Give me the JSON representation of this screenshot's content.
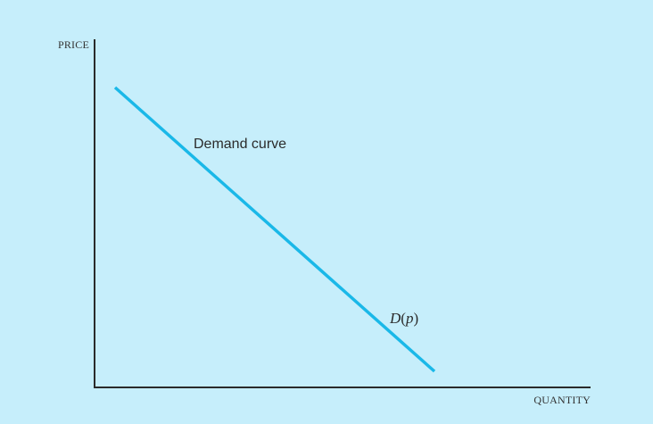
{
  "colors": {
    "background": "#c6eefb",
    "axis": "#2a2a2a",
    "curve": "#1ab8e8",
    "text": "#2b2b2b"
  },
  "diagram": {
    "y_axis_label": "PRICE",
    "x_axis_label": "QUANTITY",
    "curve_label": "Demand curve",
    "function_label": {
      "name": "D",
      "open": "(",
      "arg": "p",
      "close": ")"
    }
  }
}
